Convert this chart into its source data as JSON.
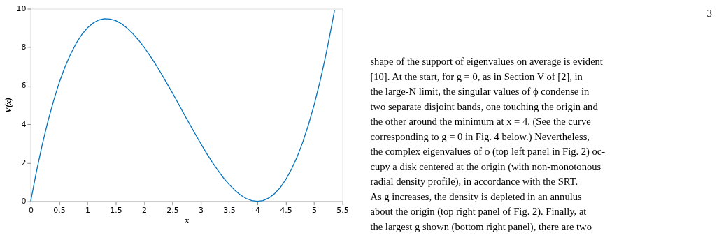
{
  "chart_data": {
    "type": "line",
    "xlabel": "x",
    "ylabel": "V(x)",
    "xlim": [
      0,
      5.5
    ],
    "ylim": [
      0,
      10
    ],
    "xticks": [
      0,
      0.5,
      1,
      1.5,
      2,
      2.5,
      3,
      3.5,
      4,
      4.5,
      5,
      5.5
    ],
    "yticks": [
      0,
      2,
      4,
      6,
      8,
      10
    ],
    "grid": false,
    "legend": false,
    "marker": "none",
    "line_style": "solid",
    "x": [
      0,
      0.1,
      0.2,
      0.3,
      0.4,
      0.5,
      0.6,
      0.7,
      0.8,
      0.9,
      1.0,
      1.1,
      1.2,
      1.3,
      1.4,
      1.5,
      1.6,
      1.7,
      1.8,
      1.9,
      2.0,
      2.1,
      2.2,
      2.3,
      2.4,
      2.5,
      2.6,
      2.7,
      2.8,
      2.9,
      3.0,
      3.1,
      3.2,
      3.3,
      3.4,
      3.5,
      3.6,
      3.7,
      3.8,
      3.9,
      4.0,
      4.1,
      4.2,
      4.3,
      4.4,
      4.5,
      4.6,
      4.7,
      4.8,
      4.9,
      5.0,
      5.1,
      5.2,
      5.3,
      5.36
    ],
    "series": [
      {
        "color": "#0072bd",
        "values": [
          0,
          1.52,
          2.89,
          4.11,
          5.18,
          6.13,
          6.94,
          7.62,
          8.19,
          8.65,
          9.0,
          9.25,
          9.41,
          9.48,
          9.46,
          9.38,
          9.22,
          8.99,
          8.71,
          8.38,
          8.0,
          7.58,
          7.13,
          6.65,
          6.14,
          5.63,
          5.1,
          4.56,
          4.03,
          3.51,
          3.0,
          2.51,
          2.05,
          1.62,
          1.22,
          0.88,
          0.58,
          0.33,
          0.15,
          0.04,
          0,
          0.04,
          0.17,
          0.39,
          0.7,
          1.13,
          1.66,
          2.3,
          3.07,
          3.97,
          5.0,
          6.17,
          7.49,
          8.96,
          9.91
        ]
      }
    ],
    "annotations": [
      "3",
      "shape of the support of eigenvalues on average is evident",
      "[10]. At the start, for g = 0, as in Section V of [2], in",
      "the large-N limit, the singular values of ϕ condense in",
      "two separate disjoint bands, one touching the origin and",
      "the other around the minimum at x = 4. (See the curve",
      "corresponding to g = 0 in Fig. 4 below.) Nevertheless,",
      "the complex eigenvalues of ϕ (top left panel in Fig. 2) oc-",
      "cupy a disk centered at the origin (with non-monotonous",
      "radial density profile), in accordance with the SRT.",
      "    As g increases, the density is depleted in an annulus",
      "about the origin (top right panel of Fig. 2). Finally, at",
      "the largest g shown (bottom right panel), there are two"
    ]
  }
}
